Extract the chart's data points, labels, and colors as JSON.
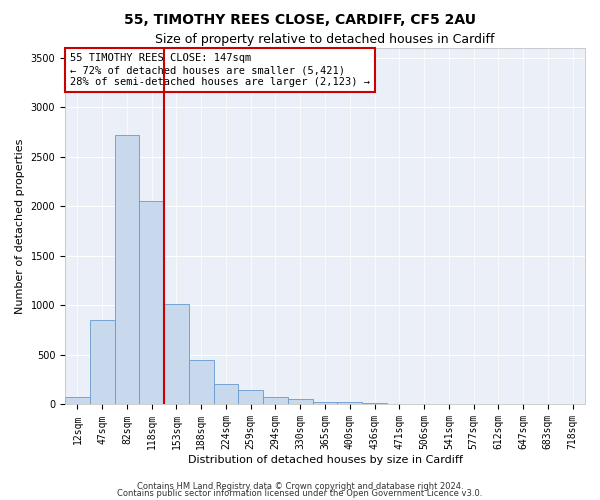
{
  "title": "55, TIMOTHY REES CLOSE, CARDIFF, CF5 2AU",
  "subtitle": "Size of property relative to detached houses in Cardiff",
  "xlabel": "Distribution of detached houses by size in Cardiff",
  "ylabel": "Number of detached properties",
  "footnote1": "Contains HM Land Registry data © Crown copyright and database right 2024.",
  "footnote2": "Contains public sector information licensed under the Open Government Licence v3.0.",
  "property_label": "55 TIMOTHY REES CLOSE: 147sqm",
  "annotation_line1": "← 72% of detached houses are smaller (5,421)",
  "annotation_line2": "28% of semi-detached houses are larger (2,123) →",
  "bar_categories": [
    "12sqm",
    "47sqm",
    "82sqm",
    "118sqm",
    "153sqm",
    "188sqm",
    "224sqm",
    "259sqm",
    "294sqm",
    "330sqm",
    "365sqm",
    "400sqm",
    "436sqm",
    "471sqm",
    "506sqm",
    "541sqm",
    "577sqm",
    "612sqm",
    "647sqm",
    "683sqm",
    "718sqm"
  ],
  "bar_values": [
    75,
    850,
    2720,
    2060,
    1010,
    450,
    210,
    145,
    75,
    55,
    30,
    20,
    12,
    5,
    3,
    2,
    1,
    1,
    0,
    0,
    0
  ],
  "bar_color": "#c8d9ee",
  "bar_edge_color": "#6699cc",
  "vline_color": "#cc0000",
  "vline_index": 4,
  "annotation_box_color": "#cc0000",
  "ylim": [
    0,
    3600
  ],
  "yticks": [
    0,
    500,
    1000,
    1500,
    2000,
    2500,
    3000,
    3500
  ],
  "bg_color": "#eaeff8",
  "grid_color": "#ffffff",
  "title_fontsize": 10,
  "subtitle_fontsize": 9,
  "axis_label_fontsize": 8,
  "tick_fontsize": 7,
  "annotation_fontsize": 7.5
}
